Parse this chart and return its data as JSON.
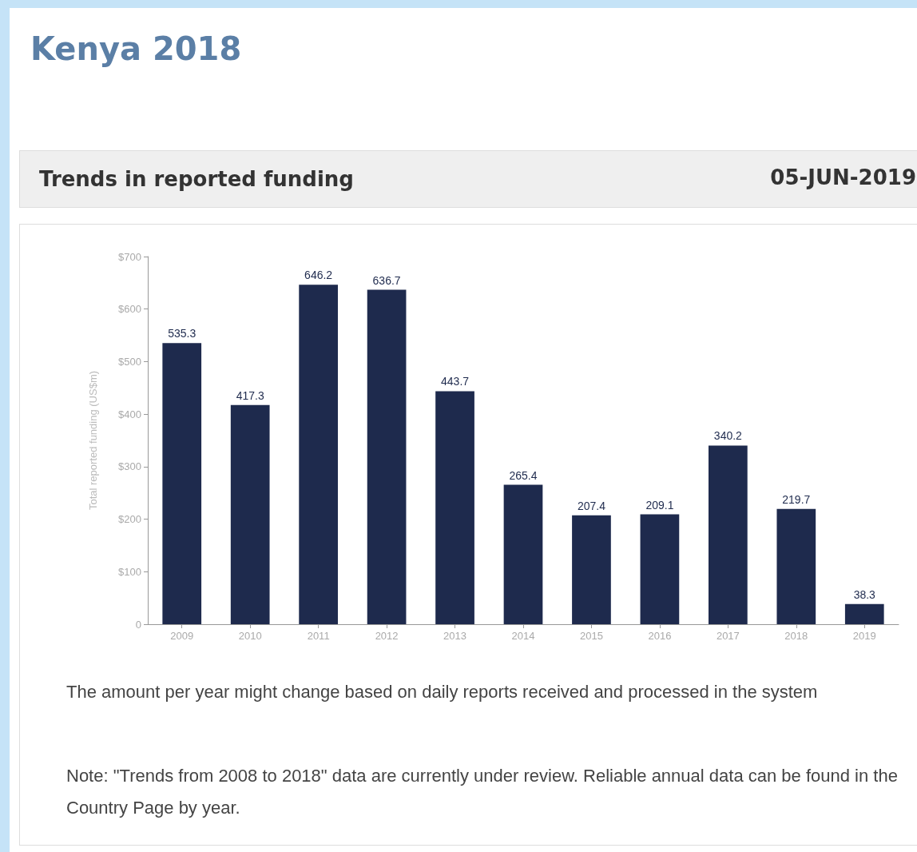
{
  "chart_data": {
    "type": "bar",
    "title": "Kenya 2018",
    "subtitle": "Trends in reported funding",
    "ylabel": "Total reported funding (US$m)",
    "categories": [
      "2009",
      "2010",
      "2011",
      "2012",
      "2013",
      "2014",
      "2015",
      "2016",
      "2017",
      "2018",
      "2019"
    ],
    "values": [
      535.3,
      417.3,
      646.2,
      636.7,
      443.7,
      265.4,
      207.4,
      209.1,
      340.2,
      219.7,
      38.3
    ],
    "color": "#1e2a4d",
    "data_labels": true,
    "grid": false,
    "ylim": [
      0,
      700
    ],
    "yticks": [
      {
        "value": 0,
        "label": "0"
      },
      {
        "value": 100,
        "label": "$100"
      },
      {
        "value": 200,
        "label": "$200"
      },
      {
        "value": 300,
        "label": "$300"
      },
      {
        "value": 400,
        "label": "$400"
      },
      {
        "value": 500,
        "label": "$500"
      },
      {
        "value": 600,
        "label": "$600"
      },
      {
        "value": 700,
        "label": "$700"
      }
    ],
    "annotations": [
      "05-JUN-2019",
      "The amount per year might change based on daily reports received and processed in the system",
      "Note: \"Trends from 2008 to 2018\" data are currently under review. Reliable annual data can be found in the Country Page by year."
    ]
  }
}
